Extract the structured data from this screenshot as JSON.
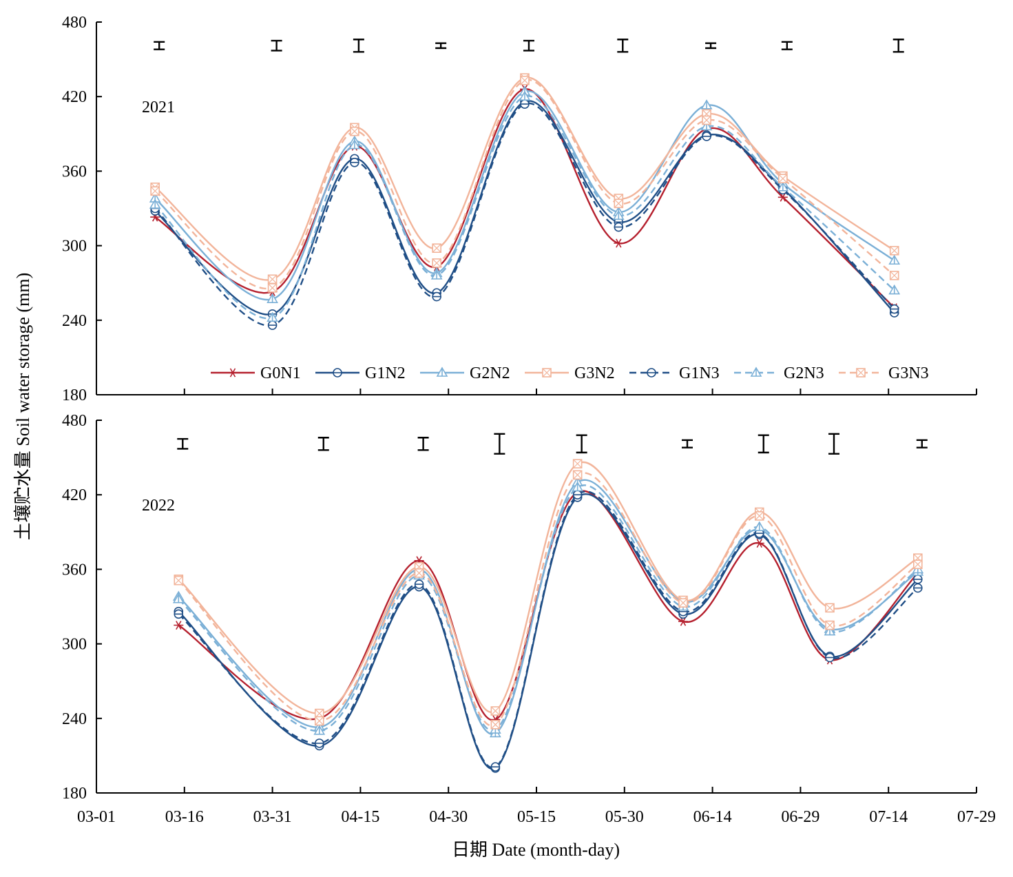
{
  "chart_data": {
    "type": "line",
    "xlabel": "日期 Date (month-day)",
    "ylabel": "土壤贮水量 Soil water storage (mm)",
    "x_ticks": [
      "03-01",
      "03-16",
      "03-31",
      "04-15",
      "04-30",
      "05-15",
      "05-30",
      "06-14",
      "06-29",
      "07-14",
      "07-29"
    ],
    "xlim": [
      "03-01",
      "07-29"
    ],
    "ylim": [
      180,
      480
    ],
    "y_ticks": [
      180,
      240,
      300,
      360,
      420,
      480
    ],
    "legend": [
      {
        "name": "G0N1",
        "color": "#b5202e",
        "dash": false,
        "marker": "star"
      },
      {
        "name": "G1N2",
        "color": "#1f4e86",
        "dash": false,
        "marker": "circle"
      },
      {
        "name": "G2N2",
        "color": "#7aafd6",
        "dash": false,
        "marker": "triangle"
      },
      {
        "name": "G3N2",
        "color": "#f2b49a",
        "dash": false,
        "marker": "square-x"
      },
      {
        "name": "G1N3",
        "color": "#1f4e86",
        "dash": true,
        "marker": "circle"
      },
      {
        "name": "G2N3",
        "color": "#7aafd6",
        "dash": true,
        "marker": "triangle"
      },
      {
        "name": "G3N3",
        "color": "#f2b49a",
        "dash": true,
        "marker": "square-x"
      }
    ],
    "panels": [
      {
        "year": "2021",
        "x": [
          "03-11",
          "03-31",
          "04-14",
          "04-28",
          "05-13",
          "05-29",
          "06-13",
          "06-26",
          "07-15"
        ],
        "error_bars": [
          {
            "x": "03-11",
            "y": 461,
            "half": 3
          },
          {
            "x": "03-31",
            "y": 461,
            "half": 4
          },
          {
            "x": "04-14",
            "y": 461,
            "half": 5
          },
          {
            "x": "04-28",
            "y": 461,
            "half": 2
          },
          {
            "x": "05-13",
            "y": 461,
            "half": 4
          },
          {
            "x": "05-29",
            "y": 461,
            "half": 5
          },
          {
            "x": "06-13",
            "y": 461,
            "half": 2
          },
          {
            "x": "06-26",
            "y": 461,
            "half": 3
          },
          {
            "x": "07-15",
            "y": 461,
            "half": 5
          }
        ],
        "series": [
          {
            "name": "G0N1",
            "values": [
              323,
              263,
              380,
              283,
              426,
              302,
              394,
              339,
              250
            ]
          },
          {
            "name": "G1N2",
            "values": [
              328,
              245,
              370,
              262,
              416,
              319,
              389,
              346,
              246
            ]
          },
          {
            "name": "G2N2",
            "values": [
              338,
              257,
              384,
              278,
              424,
              327,
              413,
              350,
              288
            ]
          },
          {
            "name": "G3N2",
            "values": [
              347,
              273,
              395,
              298,
              435,
              338,
              406,
              356,
              296
            ]
          },
          {
            "name": "G1N3",
            "values": [
              330,
              236,
              367,
              259,
              414,
              315,
              388,
              345,
              249
            ]
          },
          {
            "name": "G2N3",
            "values": [
              333,
              242,
              381,
              276,
              420,
              324,
              396,
              347,
              264
            ]
          },
          {
            "name": "G3N3",
            "values": [
              344,
              266,
              392,
              286,
              433,
              334,
              401,
              354,
              276
            ]
          }
        ]
      },
      {
        "year": "2022",
        "x": [
          "03-15",
          "04-08",
          "04-25",
          "05-08",
          "05-22",
          "06-09",
          "06-22",
          "07-04",
          "07-19"
        ],
        "error_bars": [
          {
            "x": "03-15",
            "y": 461,
            "half": 4
          },
          {
            "x": "04-08",
            "y": 461,
            "half": 5
          },
          {
            "x": "04-25",
            "y": 461,
            "half": 5
          },
          {
            "x": "05-08",
            "y": 461,
            "half": 8
          },
          {
            "x": "05-22",
            "y": 461,
            "half": 7
          },
          {
            "x": "06-09",
            "y": 461,
            "half": 3
          },
          {
            "x": "06-22",
            "y": 461,
            "half": 7
          },
          {
            "x": "07-04",
            "y": 461,
            "half": 8
          },
          {
            "x": "07-19",
            "y": 461,
            "half": 3
          }
        ],
        "series": [
          {
            "name": "G0N1",
            "values": [
              315,
              240,
              367,
              239,
              422,
              318,
              381,
              287,
              357
            ]
          },
          {
            "name": "G1N2",
            "values": [
              326,
              218,
              346,
              200,
              418,
              324,
              388,
              290,
              352
            ]
          },
          {
            "name": "G2N2",
            "values": [
              338,
              233,
              360,
              228,
              430,
              334,
              392,
              312,
              358
            ]
          },
          {
            "name": "G3N2",
            "values": [
              352,
              244,
              362,
              246,
              445,
              335,
              406,
              329,
              369
            ]
          },
          {
            "name": "G1N3",
            "values": [
              324,
              220,
              348,
              201,
              420,
              326,
              389,
              289,
              345
            ]
          },
          {
            "name": "G2N3",
            "values": [
              336,
              230,
              355,
              231,
              426,
              330,
              394,
              310,
              360
            ]
          },
          {
            "name": "G3N3",
            "values": [
              351,
              238,
              357,
              235,
              436,
              333,
              403,
              315,
              364
            ]
          }
        ]
      }
    ]
  }
}
